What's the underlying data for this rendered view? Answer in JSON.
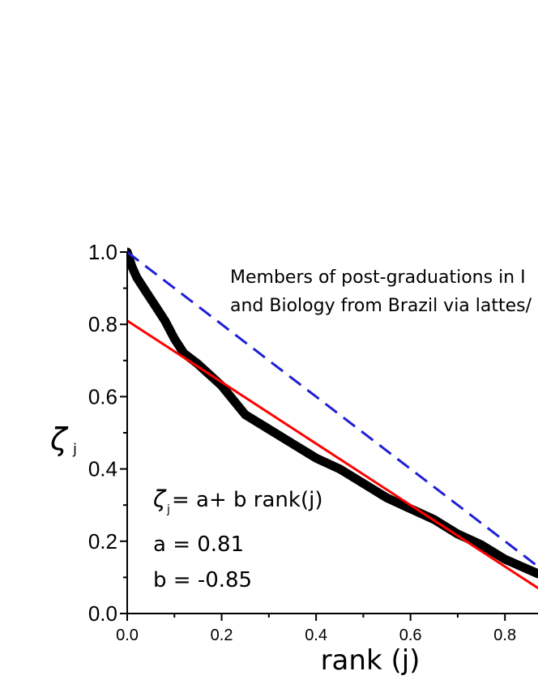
{
  "chart_data": {
    "type": "line",
    "xlabel": "rank (j)",
    "ylabel": "ζ",
    "ylabel_sub": "j",
    "xlim": [
      0.0,
      0.87
    ],
    "ylim": [
      0.0,
      1.0
    ],
    "x_ticks": [
      "0.0",
      "0.2",
      "0.4",
      "0.6",
      "0.8"
    ],
    "y_ticks": [
      "0.0",
      "0.2",
      "0.4",
      "0.6",
      "0.8",
      "1.0"
    ],
    "annotation_lines": [
      "Members of post-graduations in I",
      "and Biology from Brazil via lattes/"
    ],
    "fit_equation": {
      "symbol": "ζ",
      "sub": "j",
      "rest": " = a+ b rank(j)"
    },
    "fit_params": [
      "a = 0.81",
      "b = -0.85"
    ],
    "series": [
      {
        "kind": "data",
        "color": "#000000",
        "x": [
          0.0,
          0.01,
          0.02,
          0.04,
          0.06,
          0.08,
          0.1,
          0.12,
          0.15,
          0.2,
          0.25,
          0.3,
          0.35,
          0.4,
          0.45,
          0.5,
          0.55,
          0.6,
          0.65,
          0.7,
          0.75,
          0.8,
          0.87
        ],
        "y": [
          1.0,
          0.96,
          0.93,
          0.89,
          0.85,
          0.81,
          0.76,
          0.72,
          0.69,
          0.63,
          0.55,
          0.51,
          0.47,
          0.43,
          0.4,
          0.36,
          0.32,
          0.29,
          0.26,
          0.22,
          0.19,
          0.15,
          0.11
        ]
      },
      {
        "kind": "fit",
        "color": "#ff0000",
        "x": [
          0.0,
          0.87
        ],
        "y": [
          0.81,
          0.0705
        ]
      },
      {
        "kind": "reference",
        "color": "#1f1fd6",
        "dashed": true,
        "x": [
          0.0,
          0.87
        ],
        "y": [
          1.0,
          0.13
        ]
      }
    ]
  }
}
